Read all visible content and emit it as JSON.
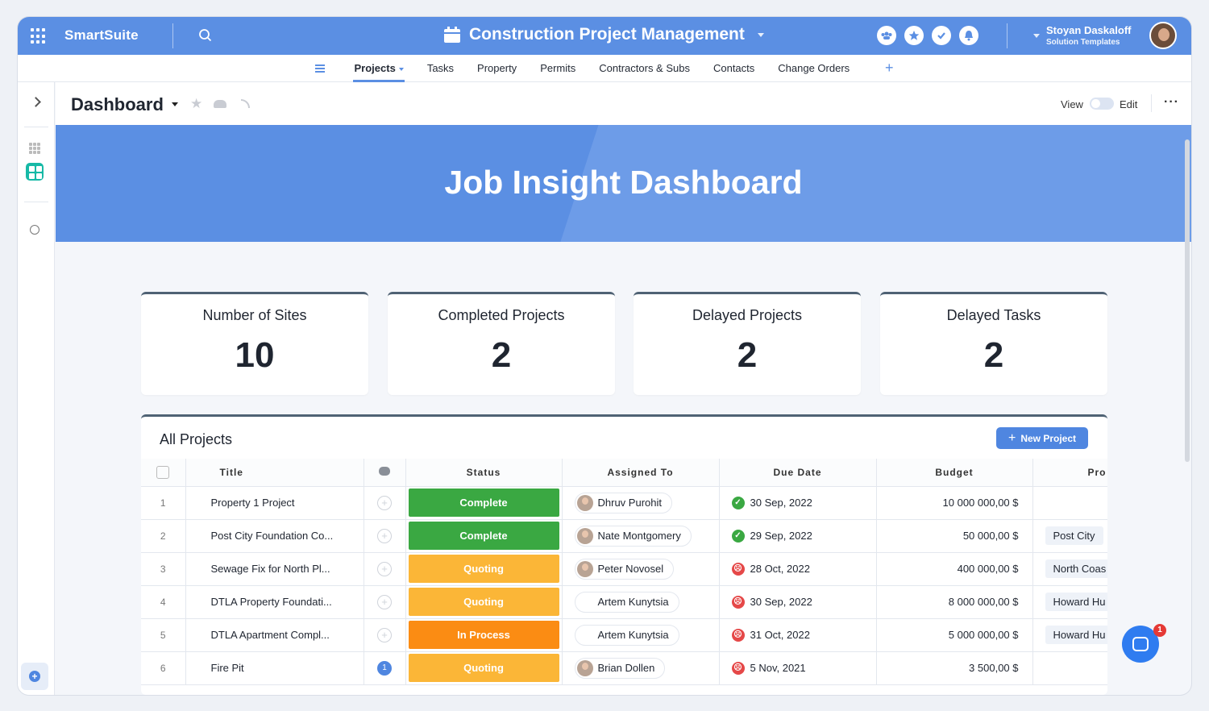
{
  "app": {
    "brand": "SmartSuite",
    "title": "Construction Project Management"
  },
  "user": {
    "name": "Stoyan Daskaloff",
    "role": "Solution Templates"
  },
  "nav": {
    "tabs": [
      "Projects",
      "Tasks",
      "Property",
      "Permits",
      "Contractors & Subs",
      "Contacts",
      "Change Orders"
    ],
    "active": "Projects",
    "add": "+"
  },
  "header": {
    "title": "Dashboard",
    "view_label": "View",
    "edit_label": "Edit",
    "more": "···"
  },
  "banner": {
    "title": "Job Insight Dashboard"
  },
  "stats": [
    {
      "label": "Number of Sites",
      "value": "10"
    },
    {
      "label": "Completed Projects",
      "value": "2"
    },
    {
      "label": "Delayed Projects",
      "value": "2"
    },
    {
      "label": "Delayed Tasks",
      "value": "2"
    }
  ],
  "table": {
    "title": "All Projects",
    "new_button": "New Project",
    "columns": {
      "title": "Title",
      "status": "Status",
      "assigned": "Assigned To",
      "due": "Due Date",
      "budget": "Budget",
      "property": "Pro"
    },
    "rows": [
      {
        "num": "1",
        "title": "Property 1 Project",
        "comments": "",
        "status": "Complete",
        "status_color": "#3aa842",
        "assigned": "Dhruv Purohit",
        "has_avatar": true,
        "due": "30 Sep, 2022",
        "due_state": "ok",
        "budget": "10 000 000,00 $",
        "property": ""
      },
      {
        "num": "2",
        "title": "Post City Foundation Co...",
        "comments": "",
        "status": "Complete",
        "status_color": "#3aa842",
        "assigned": "Nate Montgomery",
        "has_avatar": true,
        "due": "29 Sep, 2022",
        "due_state": "ok",
        "budget": "50 000,00 $",
        "property": "Post City"
      },
      {
        "num": "3",
        "title": "Sewage Fix for North Pl...",
        "comments": "",
        "status": "Quoting",
        "status_color": "#fbb637",
        "assigned": "Peter Novosel",
        "has_avatar": true,
        "due": "28 Oct, 2022",
        "due_state": "late",
        "budget": "400 000,00 $",
        "property": "North Coas"
      },
      {
        "num": "4",
        "title": "DTLA Property Foundati...",
        "comments": "",
        "status": "Quoting",
        "status_color": "#fbb637",
        "assigned": "Artem Kunytsia",
        "has_avatar": false,
        "due": "30 Sep, 2022",
        "due_state": "late",
        "budget": "8 000 000,00 $",
        "property": "Howard Hu"
      },
      {
        "num": "5",
        "title": "DTLA Apartment Compl...",
        "comments": "",
        "status": "In Process",
        "status_color": "#fb8c13",
        "assigned": "Artem Kunytsia",
        "has_avatar": false,
        "due": "31 Oct, 2022",
        "due_state": "late",
        "budget": "5 000 000,00 $",
        "property": "Howard Hu"
      },
      {
        "num": "6",
        "title": "Fire Pit",
        "comments": "1",
        "status": "Quoting",
        "status_color": "#fbb637",
        "assigned": "Brian Dollen",
        "has_avatar": true,
        "due": "5 Nov, 2021",
        "due_state": "late",
        "budget": "3 500,00 $",
        "property": ""
      }
    ]
  },
  "colors": {
    "primary": "#5b8fe3",
    "button": "#4f86e0",
    "ok": "#3aa842",
    "late": "#e54848"
  },
  "chat": {
    "badge": "1"
  }
}
